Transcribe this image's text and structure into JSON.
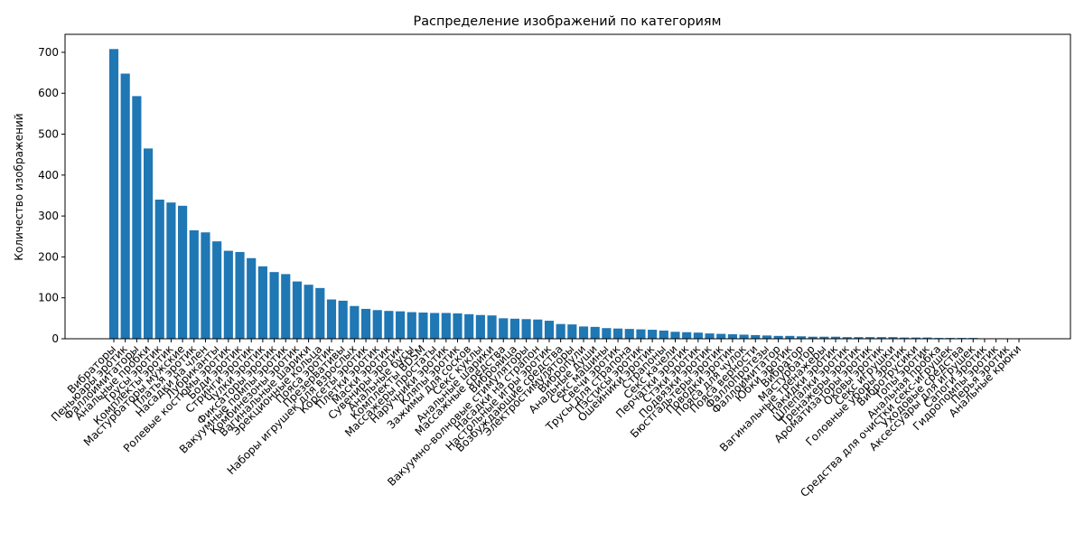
{
  "chart_data": {
    "type": "bar",
    "title": "Распределение изображений по категориям",
    "y_label": "Количество изображений",
    "color": "#1f77b4",
    "ylim": [
      0,
      744
    ],
    "yticks": [
      0,
      100,
      200,
      300,
      400,
      500,
      600,
      700
    ],
    "grid": false,
    "categories": [
      "Вибраторы",
      "Пеньюары эротик",
      "Фаллоимитаторы",
      "Анальные пробки",
      "Трусы эротик",
      "Комплекты эротик",
      "Мастурбаторы мужские",
      "Платья эротик",
      "Насадки на член",
      "Лубриканты",
      "Ролевые костюмы эротик",
      "Боди эротик",
      "Стринги эротик",
      "Чулки эротик",
      "Фиксаторы эротик",
      "Вакуумные помпы эротик",
      "Комбинезоны эротик",
      "Вагинальные шарики",
      "Эрекционные кольца",
      "Пояса эротик",
      "Презервативы",
      "Наборы игрушек для взрослых",
      "Корсеты эротик",
      "Плетки эротик",
      "Маски эротик",
      "Сувениры эротик",
      "Анальные бусы",
      "Комплекты BDSM",
      "Массажеры простаты",
      "Наручники эротик",
      "Кляпы эротик",
      "Зажимы для сосков",
      "Секс куклы",
      "Анальные шарики",
      "Массажные средства",
      "Виброяйца",
      "Вакуумно-волновые стимуляторы",
      "Насадки на страпон",
      "Настольные игры эротик",
      "Возбуждающие средства",
      "Электростимуляторы",
      "Вибропули",
      "Анальные души",
      "Секс машины",
      "Свечи эротик",
      "Трусы для страпона",
      "Пэстисы эротик",
      "Ошейники эротик",
      "Страпоны",
      "Секс качели",
      "Перчатки эротик",
      "Стэки эротик",
      "Подвязки эротик",
      "Бюстгальтеры эротик",
      "Поводки эротик",
      "Пояса для чулок",
      "Пояса верности",
      "Фаллопротезы",
      "Фаллоимитатор",
      "Юбки эротик",
      "Вибратор",
      "Мастурбатор",
      "Вагинальные тренажеры",
      "Накидки эротик",
      "Шлепалки эротик",
      "Тренажеры эротик",
      "Ароматизаторы эротик",
      "Оковы эротик",
      "Секс игрушки",
      "Головные уборы эротик",
      "Вибротрусики",
      "Топы эротик",
      "Анальная пробка",
      "Средства для очистки секс-игрушек",
      "Уходовые средства",
      "Аксессуары для игрушек",
      "Сапоги эротик",
      "Гидропомпы эротик",
      "Перья эротик",
      "Анальные крюки"
    ],
    "values": [
      708,
      648,
      593,
      465,
      340,
      333,
      325,
      265,
      260,
      238,
      215,
      212,
      197,
      177,
      163,
      158,
      140,
      132,
      124,
      96,
      93,
      80,
      73,
      70,
      68,
      67,
      65,
      64,
      63,
      63,
      62,
      60,
      58,
      57,
      50,
      49,
      48,
      47,
      44,
      36,
      35,
      30,
      29,
      26,
      25,
      24,
      23,
      22,
      20,
      17,
      16,
      15,
      13,
      12,
      11,
      10,
      9,
      8,
      7,
      7,
      6,
      5,
      5,
      5,
      4,
      4,
      4,
      4,
      4,
      3,
      3,
      3,
      2,
      2,
      2,
      2,
      1,
      1,
      1,
      0
    ]
  }
}
